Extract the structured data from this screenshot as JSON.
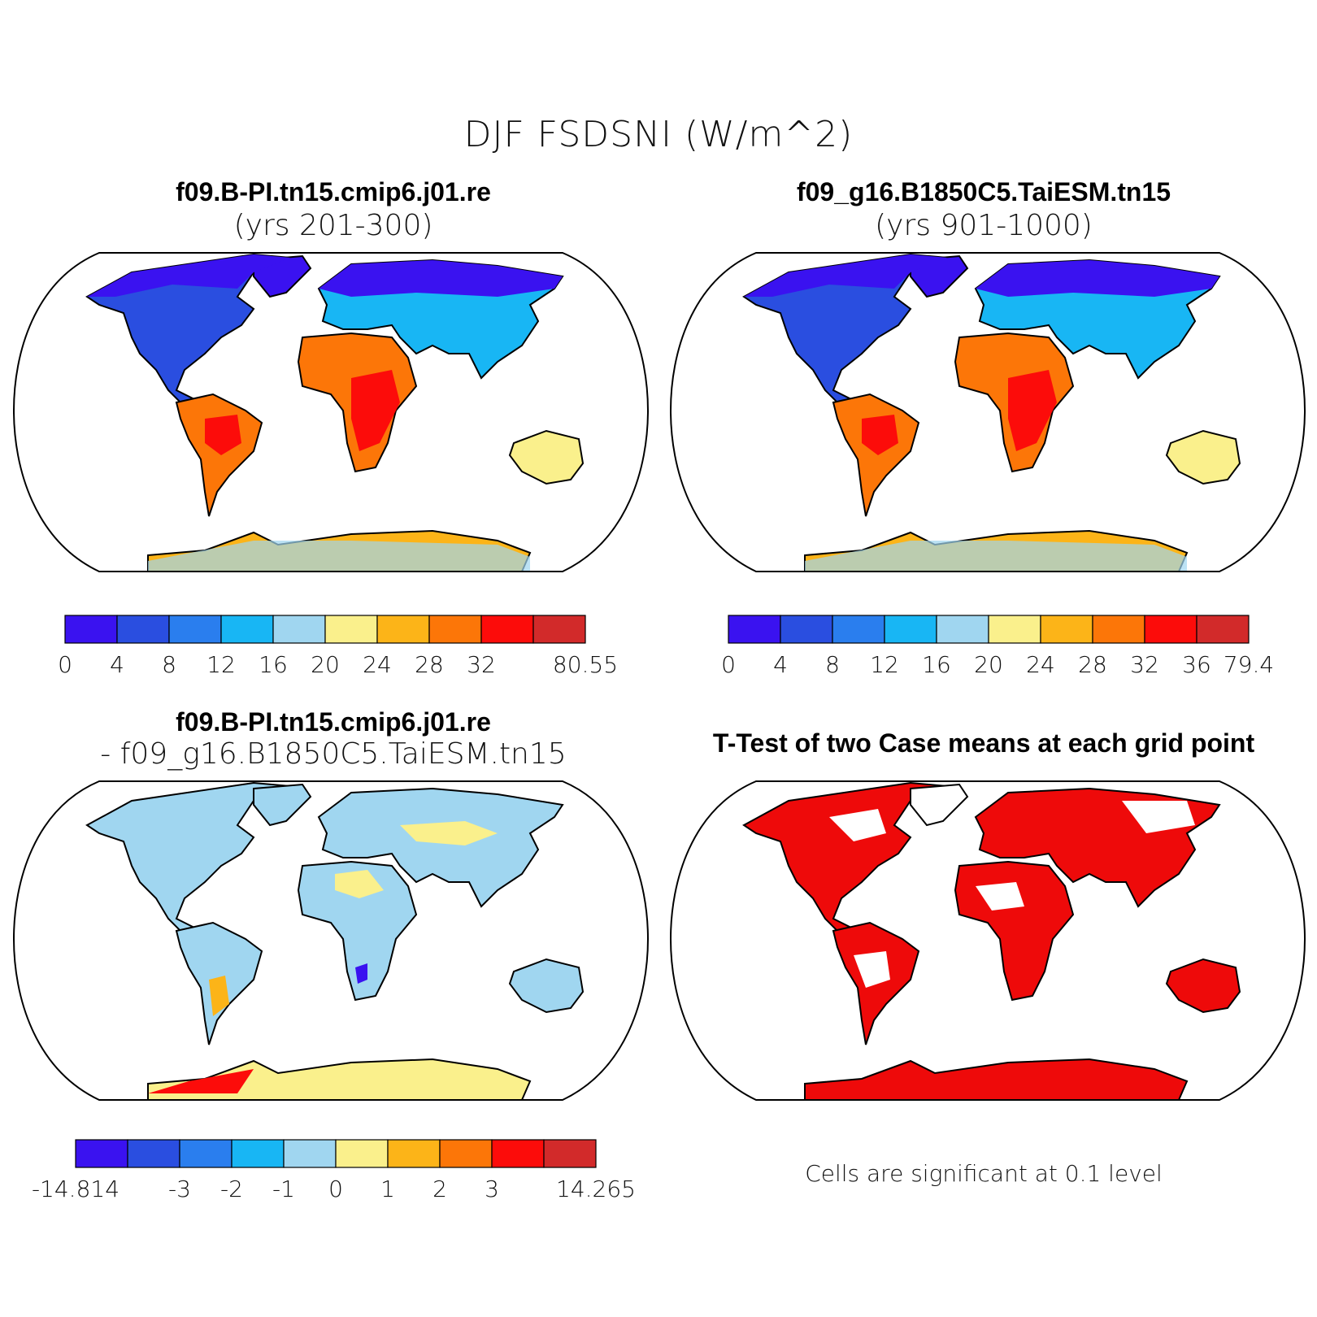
{
  "main_title": "DJF FSDSNI (W/m^2)",
  "panels": {
    "case1": {
      "title": "f09.B-PI.tn15.cmip6.j01.re",
      "subtitle": "(yrs 201-300)"
    },
    "case2": {
      "title": "f09_g16.B1850C5.TaiESM.tn15",
      "subtitle": "(yrs 901-1000)"
    },
    "diff": {
      "title": "f09.B-PI.tn15.cmip6.j01.re",
      "subtitle": "- f09_g16.B1850C5.TaiESM.tn15"
    },
    "ttest": {
      "title": "T-Test of two Case means at each grid point",
      "note": "Cells are significant at 0.1 level"
    }
  },
  "colorbars": {
    "case1": {
      "colors": [
        "#3a12f0",
        "#2a4ee0",
        "#2a7eee",
        "#18b6f4",
        "#a0d6f0",
        "#faf08c",
        "#fcb418",
        "#fc7608",
        "#fc0c0a",
        "#d22a2a"
      ],
      "labels": [
        "0",
        "4",
        "8",
        "12",
        "16",
        "20",
        "24",
        "28",
        "32",
        "80.55"
      ],
      "label_edges": [
        0,
        1,
        2,
        3,
        4,
        5,
        6,
        7,
        8,
        10
      ]
    },
    "case2": {
      "colors": [
        "#3a12f0",
        "#2a4ee0",
        "#2a7eee",
        "#18b6f4",
        "#a0d6f0",
        "#faf08c",
        "#fcb418",
        "#fc7608",
        "#fc0c0a",
        "#d22a2a"
      ],
      "labels": [
        "0",
        "4",
        "8",
        "12",
        "16",
        "20",
        "24",
        "28",
        "32",
        "36",
        "79.4"
      ],
      "label_edges": [
        0,
        1,
        2,
        3,
        4,
        5,
        6,
        7,
        8,
        9,
        10
      ]
    },
    "diff": {
      "colors": [
        "#3a12f0",
        "#2a4ee0",
        "#2a7eee",
        "#18b6f4",
        "#a0d6f0",
        "#faf08c",
        "#fcb418",
        "#fc7608",
        "#fc0c0a",
        "#d22a2a"
      ],
      "labels": [
        "-14.814",
        "-3",
        "-2",
        "-1",
        "0",
        "1",
        "2",
        "3",
        "14.265"
      ],
      "label_edges": [
        0,
        2,
        3,
        4,
        5,
        6,
        7,
        8,
        10
      ]
    }
  },
  "colors": {
    "significant": "#ee0a0a",
    "land_cold": "#2a4ee0",
    "land_mid": "#18b6f4",
    "land_warm": "#fc7608",
    "diff_land": "#a0d6f0",
    "diff_pos": "#faf08c"
  }
}
